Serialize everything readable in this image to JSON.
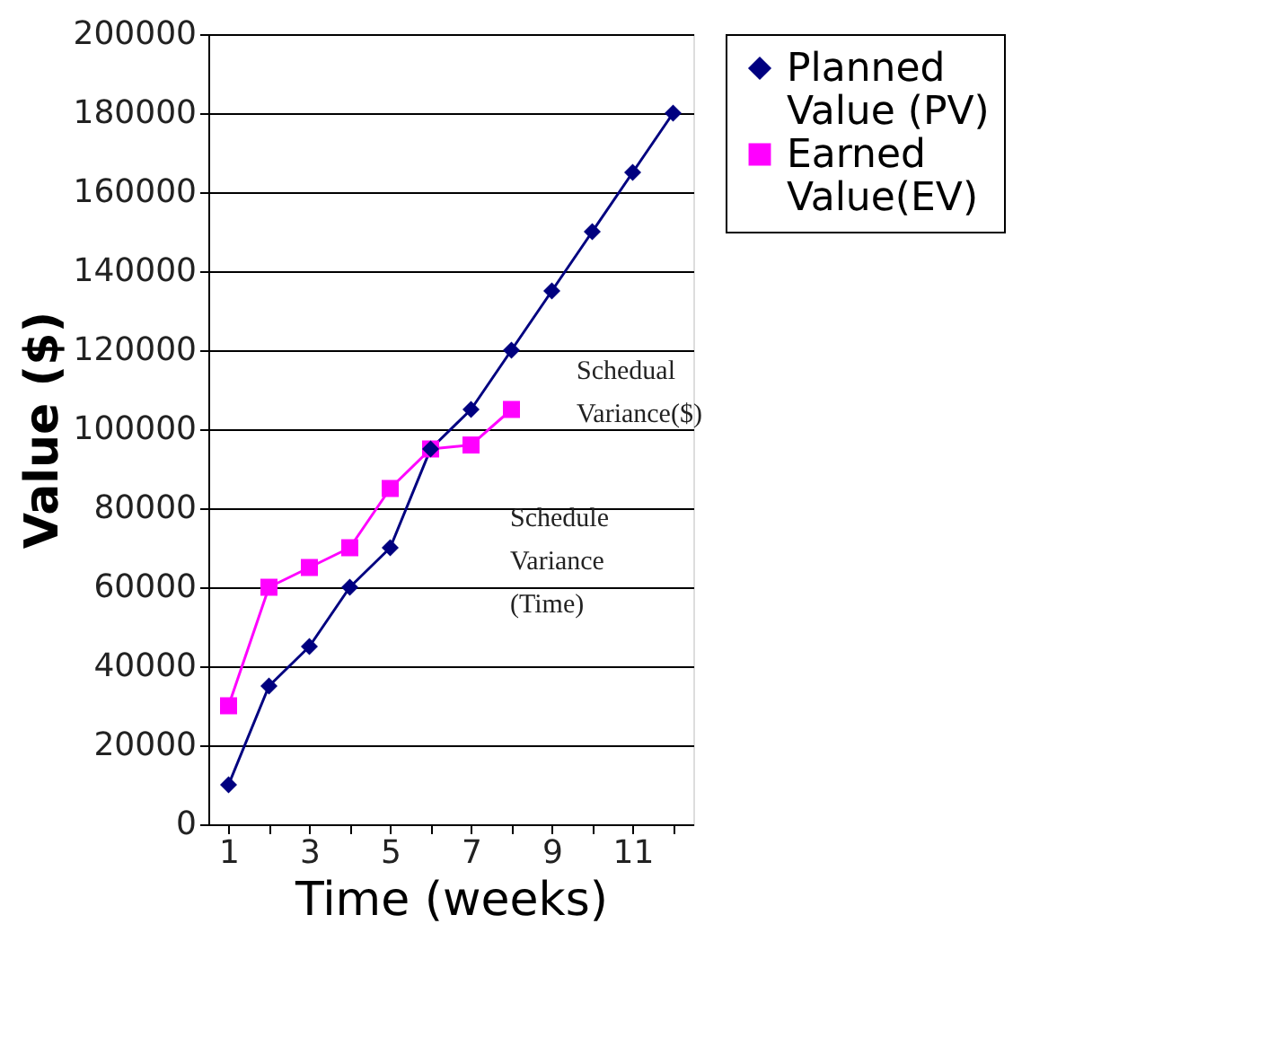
{
  "chart_data": {
    "type": "line",
    "xlabel": "Time (weeks)",
    "ylabel": "Value ($)",
    "categories": [
      "1",
      null,
      "3",
      null,
      "5",
      null,
      "7",
      null,
      "9",
      null,
      "11",
      null
    ],
    "series": [
      {
        "name": "Planned Value (PV)",
        "color": "#000080",
        "marker": "diamond",
        "values": [
          10000,
          35000,
          45000,
          60000,
          70000,
          95000,
          105000,
          120000,
          135000,
          150000,
          165000,
          180000
        ]
      },
      {
        "name": "Earned Value(EV)",
        "color": "#ff00ff",
        "marker": "square",
        "values": [
          30000,
          60000,
          65000,
          70000,
          85000,
          95000,
          96000,
          105000,
          null,
          null,
          null,
          null
        ]
      }
    ],
    "ylim": [
      0,
      200000
    ],
    "yticks": [
      0,
      20000,
      40000,
      60000,
      80000,
      100000,
      120000,
      140000,
      160000,
      180000,
      200000
    ],
    "grid": "y",
    "legend": "right",
    "annotations": [
      "Schedual Variance($)",
      "Schedule Variance (Time)"
    ]
  }
}
